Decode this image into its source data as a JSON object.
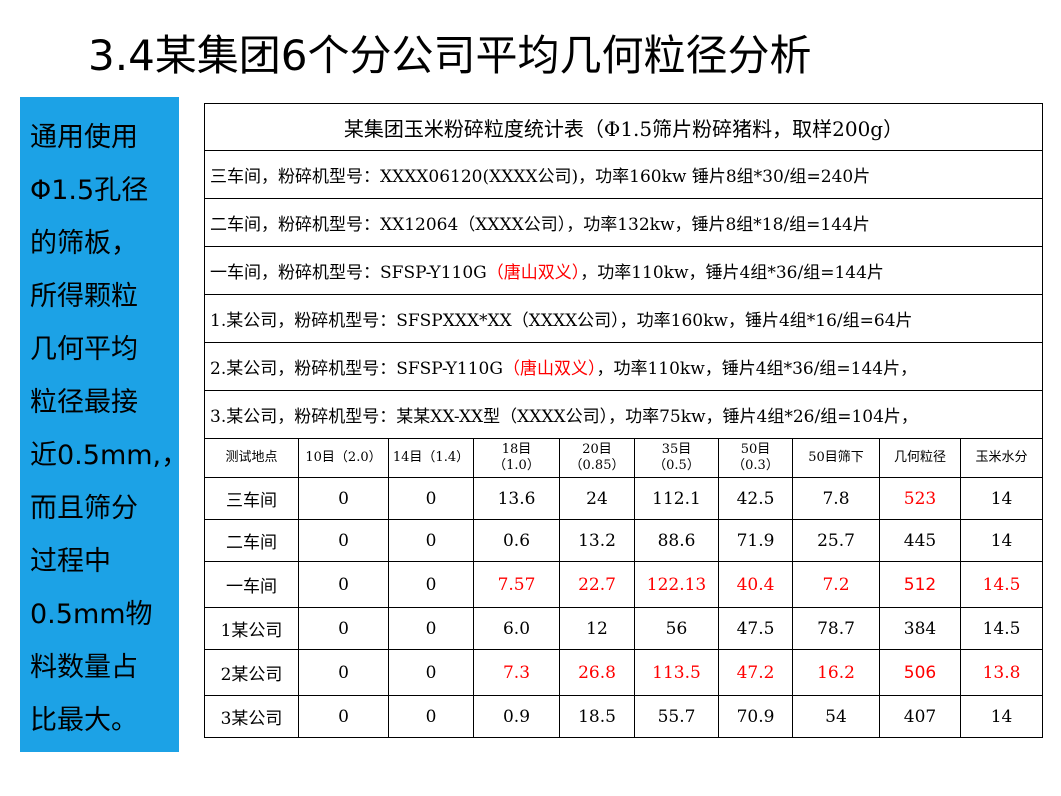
{
  "title": "3.4某集团6个分公司平均几何粒径分析",
  "side_text": [
    "通用使用",
    "Φ1.5孔径",
    "的筛板，",
    "所得颗粒",
    "几何平均",
    "粒径最接",
    "近0.5mm,，",
    "而且筛分",
    "过程中",
    "0.5mm物",
    "料数量占",
    "比最大。"
  ],
  "table": {
    "caption": "某集团玉米粉碎粒度统计表（Φ1.5筛片粉碎猪料，取样200g）",
    "info_rows": [
      [
        {
          "text": "三车间，粉碎机型号：XXXX06120(XXXX公司)，功率160kw   锤片8组*30/组=240片",
          "color": "#000000"
        }
      ],
      [
        {
          "text": "二车间，粉碎机型号：XX12064（XXXX公司），功率132kw，锤片8组*18/组=144片",
          "color": "#000000"
        }
      ],
      [
        {
          "text": "一车间，粉碎机型号：SFSP-Y110G",
          "color": "#000000"
        },
        {
          "text": "（唐山双义）",
          "color": "#ff0000"
        },
        {
          "text": "，功率110kw，锤片4组*36/组=144片",
          "color": "#000000"
        }
      ],
      [
        {
          "text": "1.某公司，粉碎机型号：SFSPXXX*XX（XXXX公司），功率160kw，锤片4组*16/组=64片",
          "color": "#000000"
        }
      ],
      [
        {
          "text": "2.某公司，粉碎机型号：SFSP-Y110G",
          "color": "#000000"
        },
        {
          "text": "（唐山双义）",
          "color": "#ff0000"
        },
        {
          "text": "，功率110kw，锤片4组*36/组=144片，",
          "color": "#000000"
        }
      ],
      [
        {
          "text": "3.某公司，粉碎机型号：某某XX-XX型（XXXX公司），功率75kw，锤片4组*26/组=104片，",
          "color": "#000000"
        }
      ]
    ],
    "headers": [
      [
        "测试地点"
      ],
      [
        "10目（2.0）"
      ],
      [
        "14目（1.4）"
      ],
      [
        "18目",
        "（1.0）"
      ],
      [
        "20目",
        "（0.85）"
      ],
      [
        "35目",
        "（0.5）"
      ],
      [
        "50目",
        "（0.3）"
      ],
      [
        "50目筛下"
      ],
      [
        "几何粒径"
      ],
      [
        "玉米水分"
      ]
    ],
    "rows": [
      {
        "place": "三车间",
        "values": [
          "0",
          "0",
          "13.6",
          "24",
          "112.1",
          "42.5",
          "7.8",
          "523",
          "14"
        ],
        "red": [
          7
        ],
        "big": []
      },
      {
        "place": "二车间",
        "values": [
          "0",
          "0",
          "0.6",
          "13.2",
          "88.6",
          "71.9",
          "25.7",
          "445",
          "14"
        ],
        "red": [],
        "big": []
      },
      {
        "place": "一车间",
        "values": [
          "0",
          "0",
          "7.57",
          "22.7",
          "122.13",
          "40.4",
          "7.2",
          "512",
          "14.5"
        ],
        "red": [
          2,
          3,
          4,
          5,
          6,
          7,
          8
        ],
        "big": [
          7
        ]
      },
      {
        "place": "1某公司",
        "values": [
          "0",
          "0",
          "6.0",
          "12",
          "56",
          "47.5",
          "78.7",
          "384",
          "14.5"
        ],
        "red": [],
        "big": []
      },
      {
        "place": "2某公司",
        "values": [
          "0",
          "0",
          "7.3",
          "26.8",
          "113.5",
          "47.2",
          "16.2",
          "506",
          "13.8"
        ],
        "red": [
          2,
          3,
          4,
          5,
          6,
          7,
          8
        ],
        "big": [
          7
        ]
      },
      {
        "place": "3某公司",
        "values": [
          "0",
          "0",
          "0.9",
          "18.5",
          "55.7",
          "70.9",
          "54",
          "407",
          "14"
        ],
        "red": [],
        "big": []
      }
    ]
  }
}
